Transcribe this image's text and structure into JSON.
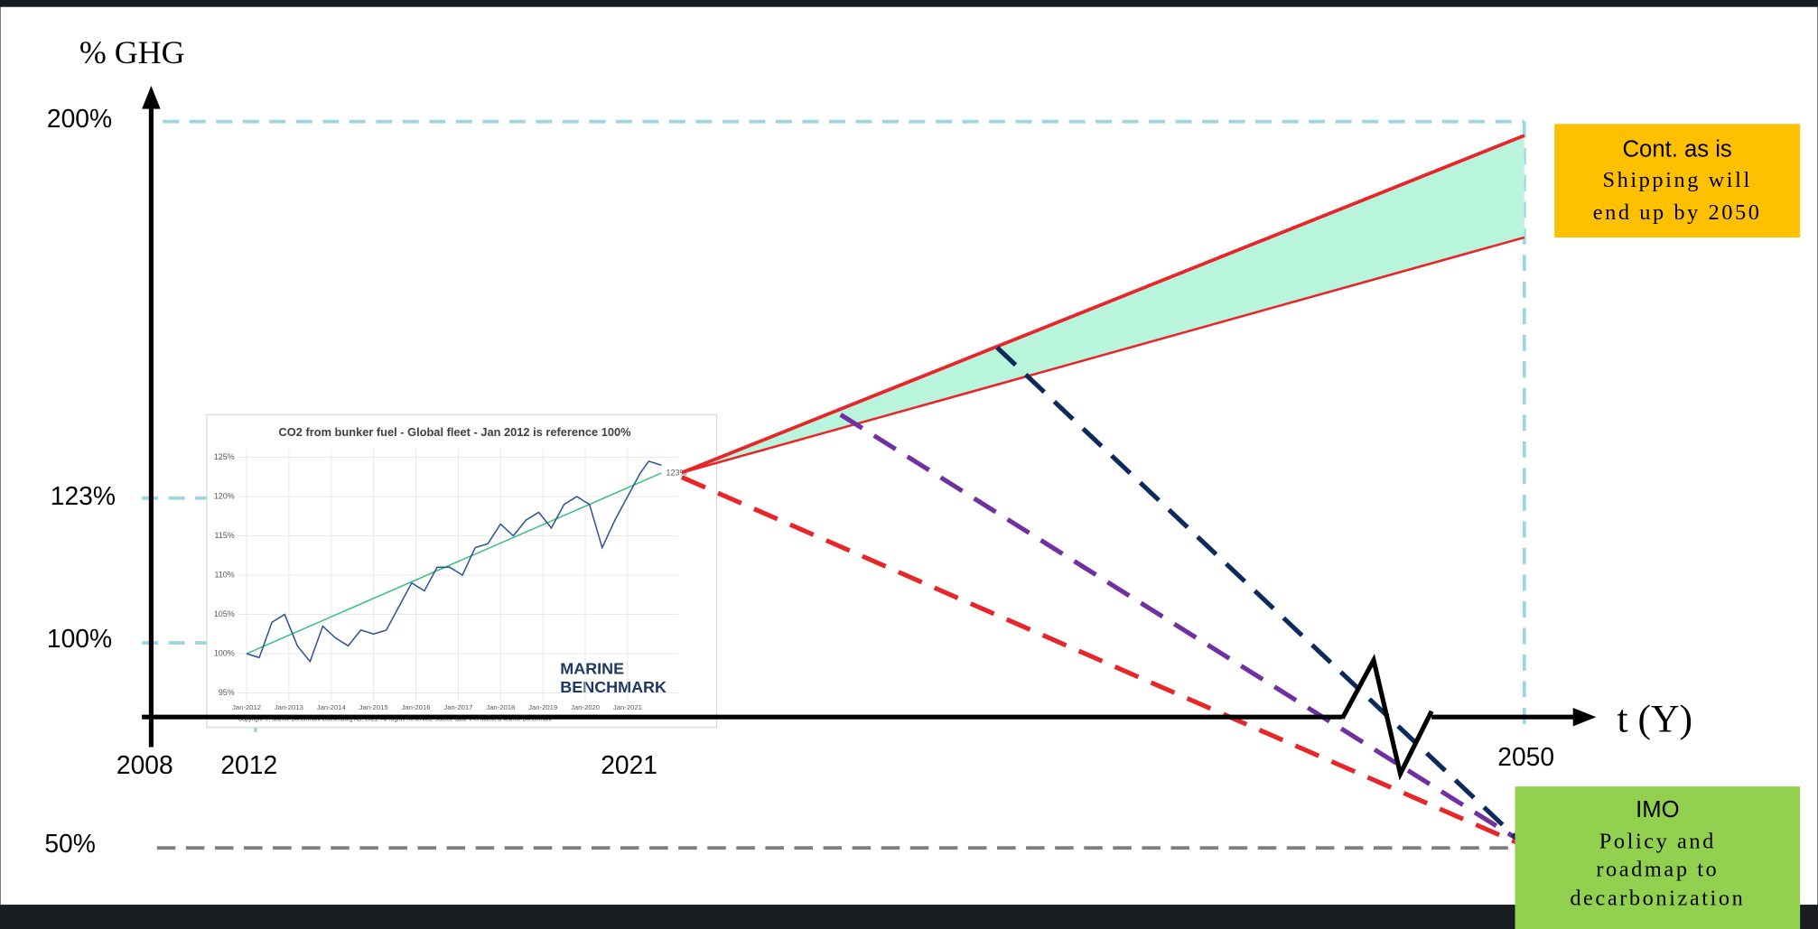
{
  "axis_title_y": "% GHG",
  "axis_title_x": "t (Y)",
  "y_labels": [
    "200%",
    "123%",
    "100%",
    "50%"
  ],
  "x_labels": [
    "2008",
    "2012",
    "2021",
    "2050"
  ],
  "boxes": {
    "continue": {
      "title": "Cont. as is",
      "lines": [
        "Shipping will",
        "end up by 2050"
      ]
    },
    "imo": {
      "title": "IMO",
      "lines": [
        "Policy and",
        "roadmap to",
        "decarbonization"
      ]
    }
  },
  "inset": {
    "title": "CO2 from bunker fuel - Global fleet - Jan 2012 is reference 100%",
    "ylim": [
      94,
      126
    ],
    "yticks": [
      {
        "value": 95,
        "label": "95%"
      },
      {
        "value": 100,
        "label": "100%"
      },
      {
        "value": 105,
        "label": "105%"
      },
      {
        "value": 110,
        "label": "110%"
      },
      {
        "value": 115,
        "label": "115%"
      },
      {
        "value": 120,
        "label": "120%"
      },
      {
        "value": 125,
        "label": "125%"
      }
    ],
    "xlim": [
      2011.8,
      2022.2
    ],
    "xticks": [
      {
        "value": 2012,
        "label": "Jan-2012"
      },
      {
        "value": 2013,
        "label": "Jan-2013"
      },
      {
        "value": 2014,
        "label": "Jan-2014"
      },
      {
        "value": 2015,
        "label": "Jan-2015"
      },
      {
        "value": 2016,
        "label": "Jan-2016"
      },
      {
        "value": 2017,
        "label": "Jan-2017"
      },
      {
        "value": 2018,
        "label": "Jan-2018"
      },
      {
        "value": 2019,
        "label": "Jan-2019"
      },
      {
        "value": 2020,
        "label": "Jan-2020"
      },
      {
        "value": 2021,
        "label": "Jan-2021"
      }
    ],
    "series": {
      "color": "#2f5597",
      "x": [
        2012,
        2012.3,
        2012.6,
        2012.9,
        2013.2,
        2013.5,
        2013.8,
        2014.1,
        2014.4,
        2014.7,
        2015.0,
        2015.3,
        2015.6,
        2015.9,
        2016.2,
        2016.5,
        2016.8,
        2017.1,
        2017.4,
        2017.7,
        2018.0,
        2018.3,
        2018.6,
        2018.9,
        2019.2,
        2019.5,
        2019.8,
        2020.1,
        2020.4,
        2020.7,
        2021.0,
        2021.3,
        2021.5,
        2021.8
      ],
      "values": [
        100,
        99.5,
        104,
        105,
        101,
        99,
        103.5,
        102,
        101,
        103,
        102.5,
        103,
        106,
        109,
        108,
        111,
        111,
        110,
        113.5,
        114,
        116.5,
        115,
        117,
        118,
        116,
        119,
        120,
        119,
        113.5,
        117,
        120,
        123,
        124.5,
        124
      ]
    },
    "trend": {
      "color": "#3cbf7f",
      "x": [
        2012,
        2021.8
      ],
      "values": [
        100,
        123
      ]
    },
    "end_label": "123%",
    "logo": [
      "MARINE",
      "BENCHMARK"
    ],
    "copyright": "Copyright ©, Marine Benchmark Gothenburg AB, 2021. All Rights Reserved, Source data: IHS Markit & Marine Benchmark"
  }
}
